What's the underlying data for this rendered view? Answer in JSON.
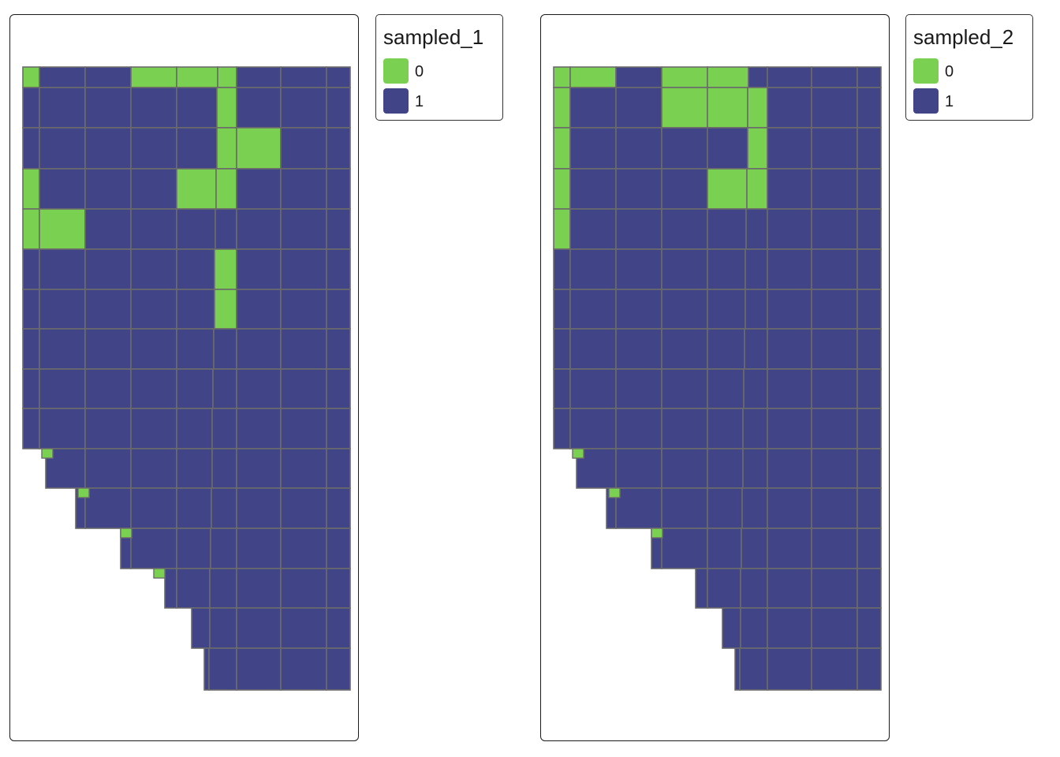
{
  "colors": {
    "zero": "#7ad151",
    "one": "#414487",
    "border": "#6b6b6b"
  },
  "maps": [
    {
      "legend": {
        "title": "sampled_1",
        "entries": [
          {
            "label": "0",
            "value": 0
          },
          {
            "label": "1",
            "value": 1
          }
        ]
      },
      "green_cells": [
        "0,0",
        "3,0",
        "4,0",
        "5,0",
        "5,1",
        "5,2",
        "6,2",
        "4,3",
        "5,3",
        "0,3",
        "0,4",
        "1,4",
        "5,5",
        "5,6"
      ],
      "green_stair_cells": [
        3,
        4,
        6,
        8
      ]
    },
    {
      "legend": {
        "title": "sampled_2",
        "entries": [
          {
            "label": "0",
            "value": 0
          },
          {
            "label": "1",
            "value": 1
          }
        ]
      },
      "green_cells": [
        "0,0",
        "1,0",
        "3,0",
        "4,0",
        "3,1",
        "4,1",
        "0,1",
        "0,2",
        "0,3",
        "0,4",
        "5,1",
        "5,2",
        "5,3",
        "4,3"
      ],
      "green_stair_cells": [
        3,
        4,
        6
      ]
    }
  ]
}
